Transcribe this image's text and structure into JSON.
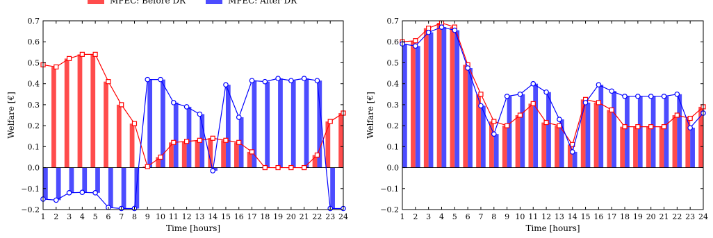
{
  "legend": [
    {
      "label": "MPEC: Before DR",
      "color": "#ff0000"
    },
    {
      "label": "MPEC: After DR",
      "color": "#0000ff"
    }
  ],
  "chart_data": [
    {
      "type": "bar",
      "xlabel": "Time [hours]",
      "ylabel": "Welfare [€]",
      "ylim": [
        -0.2,
        0.7
      ],
      "yticks": [
        -0.2,
        -0.1,
        0.0,
        0.1,
        0.2,
        0.3,
        0.4,
        0.5,
        0.6,
        0.7
      ],
      "ytick_labels": [
        "−0.2",
        "−0.1",
        "0.0",
        "0.1",
        "0.2",
        "0.3",
        "0.4",
        "0.5",
        "0.6",
        "0.7"
      ],
      "xlim": [
        1,
        24
      ],
      "categories": [
        "1",
        "2",
        "3",
        "4",
        "5",
        "6",
        "7",
        "8",
        "9",
        "10",
        "11",
        "12",
        "13",
        "14",
        "15",
        "16",
        "17",
        "18",
        "19",
        "20",
        "21",
        "22",
        "23",
        "24"
      ],
      "series": [
        {
          "name": "MPEC: Before DR",
          "color": "#ff0000",
          "values": [
            0.49,
            0.48,
            0.52,
            0.54,
            0.54,
            0.41,
            0.3,
            0.21,
            0.005,
            0.05,
            0.12,
            0.125,
            0.13,
            0.14,
            0.13,
            0.12,
            0.075,
            0.0,
            0.0,
            0.0,
            0.0,
            0.06,
            0.22,
            0.26
          ]
        },
        {
          "name": "MPEC: After DR",
          "color": "#0000ff",
          "values": [
            -0.15,
            -0.155,
            -0.12,
            -0.118,
            -0.12,
            -0.19,
            -0.195,
            -0.195,
            0.42,
            0.42,
            0.31,
            0.29,
            0.255,
            -0.015,
            0.395,
            0.24,
            0.415,
            0.41,
            0.425,
            0.415,
            0.425,
            0.415,
            -0.195,
            -0.195
          ]
        }
      ]
    },
    {
      "type": "bar",
      "xlabel": "Time [hours]",
      "ylabel": "Welfare [€]",
      "ylim": [
        -0.2,
        0.7
      ],
      "yticks": [
        -0.2,
        -0.1,
        0.0,
        0.1,
        0.2,
        0.3,
        0.4,
        0.5,
        0.6,
        0.7
      ],
      "ytick_labels": [
        "−0.2",
        "−0.1",
        "0.0",
        "0.1",
        "0.2",
        "0.3",
        "0.4",
        "0.5",
        "0.6",
        "0.7"
      ],
      "xlim": [
        1,
        24
      ],
      "categories": [
        "1",
        "2",
        "3",
        "4",
        "5",
        "6",
        "7",
        "8",
        "9",
        "10",
        "11",
        "12",
        "13",
        "14",
        "15",
        "16",
        "17",
        "18",
        "19",
        "20",
        "21",
        "22",
        "23",
        "24"
      ],
      "series": [
        {
          "name": "MPEC: Before DR",
          "color": "#ff0000",
          "values": [
            0.6,
            0.605,
            0.665,
            0.69,
            0.67,
            0.49,
            0.35,
            0.22,
            0.2,
            0.25,
            0.305,
            0.215,
            0.2,
            0.11,
            0.325,
            0.31,
            0.275,
            0.195,
            0.195,
            0.195,
            0.195,
            0.25,
            0.235,
            0.29
          ]
        },
        {
          "name": "MPEC: After DR",
          "color": "#0000ff",
          "values": [
            0.59,
            0.58,
            0.645,
            0.67,
            0.655,
            0.475,
            0.295,
            0.16,
            0.34,
            0.35,
            0.4,
            0.36,
            0.23,
            0.075,
            0.31,
            0.395,
            0.365,
            0.34,
            0.34,
            0.34,
            0.34,
            0.35,
            0.19,
            0.26
          ]
        }
      ]
    }
  ]
}
